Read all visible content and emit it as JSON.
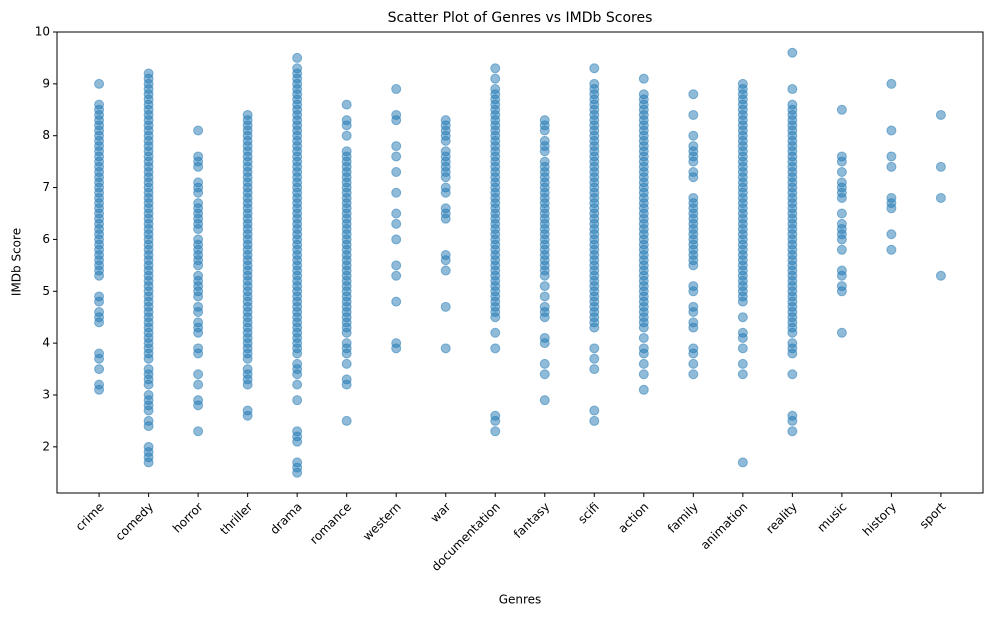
{
  "chart_data": {
    "type": "scatter",
    "title": "Scatter Plot of Genres vs IMDb Scores",
    "x_label": "Genres",
    "y_label": "IMDb Score",
    "color": "#1f77b4",
    "ylim": [
      1.11,
      10
    ],
    "yticks": [
      2,
      3,
      4,
      5,
      6,
      7,
      8,
      9,
      10
    ],
    "categories": [
      "crime",
      "comedy",
      "horror",
      "thriller",
      "drama",
      "romance",
      "western",
      "war",
      "documentation",
      "fantasy",
      "scifi",
      "action",
      "family",
      "animation",
      "reality",
      "music",
      "history",
      "sport"
    ],
    "values": [
      [
        9.0,
        8.6,
        8.5,
        8.4,
        8.3,
        8.2,
        8.1,
        8.0,
        7.9,
        7.8,
        7.7,
        7.6,
        7.5,
        7.4,
        7.3,
        7.2,
        7.1,
        7.0,
        6.9,
        6.8,
        6.7,
        6.6,
        6.5,
        6.4,
        6.3,
        6.2,
        6.1,
        6.0,
        5.9,
        5.8,
        5.7,
        5.6,
        5.5,
        5.4,
        5.3,
        4.9,
        4.8,
        4.6,
        4.5,
        4.4,
        3.8,
        3.7,
        3.5,
        3.2,
        3.1
      ],
      [
        9.2,
        9.1,
        9.0,
        8.9,
        8.8,
        8.7,
        8.6,
        8.5,
        8.4,
        8.3,
        8.2,
        8.1,
        8.0,
        7.9,
        7.8,
        7.7,
        7.6,
        7.5,
        7.4,
        7.3,
        7.2,
        7.1,
        7.0,
        6.9,
        6.8,
        6.7,
        6.6,
        6.5,
        6.4,
        6.3,
        6.2,
        6.1,
        6.0,
        5.9,
        5.8,
        5.7,
        5.6,
        5.5,
        5.4,
        5.3,
        5.2,
        5.1,
        5.0,
        4.9,
        4.8,
        4.7,
        4.6,
        4.5,
        4.4,
        4.3,
        4.2,
        4.1,
        4.0,
        3.9,
        3.8,
        3.7,
        3.5,
        3.4,
        3.3,
        3.2,
        3.0,
        2.9,
        2.8,
        2.7,
        2.5,
        2.4,
        2.0,
        1.9,
        1.8,
        1.7
      ],
      [
        8.1,
        7.6,
        7.5,
        7.4,
        7.1,
        7.0,
        6.9,
        6.7,
        6.6,
        6.5,
        6.4,
        6.3,
        6.2,
        6.0,
        5.9,
        5.8,
        5.7,
        5.6,
        5.5,
        5.3,
        5.2,
        5.1,
        5.0,
        4.9,
        4.7,
        4.6,
        4.4,
        4.3,
        4.2,
        3.9,
        3.8,
        3.4,
        3.2,
        2.9,
        2.8,
        2.3
      ],
      [
        8.4,
        8.3,
        8.2,
        8.1,
        8.0,
        7.9,
        7.8,
        7.7,
        7.6,
        7.5,
        7.4,
        7.3,
        7.2,
        7.1,
        7.0,
        6.9,
        6.8,
        6.7,
        6.6,
        6.5,
        6.4,
        6.3,
        6.2,
        6.1,
        6.0,
        5.9,
        5.8,
        5.7,
        5.6,
        5.5,
        5.4,
        5.3,
        5.2,
        5.1,
        5.0,
        4.9,
        4.8,
        4.7,
        4.6,
        4.5,
        4.4,
        4.3,
        4.2,
        4.1,
        4.0,
        3.9,
        3.8,
        3.7,
        3.5,
        3.4,
        3.3,
        3.2,
        2.7,
        2.6
      ],
      [
        9.5,
        9.3,
        9.2,
        9.1,
        9.0,
        8.9,
        8.8,
        8.7,
        8.6,
        8.5,
        8.4,
        8.3,
        8.2,
        8.1,
        8.0,
        7.9,
        7.8,
        7.7,
        7.6,
        7.5,
        7.4,
        7.3,
        7.2,
        7.1,
        7.0,
        6.9,
        6.8,
        6.7,
        6.6,
        6.5,
        6.4,
        6.3,
        6.2,
        6.1,
        6.0,
        5.9,
        5.8,
        5.7,
        5.6,
        5.5,
        5.4,
        5.3,
        5.2,
        5.1,
        5.0,
        4.9,
        4.8,
        4.7,
        4.6,
        4.5,
        4.4,
        4.3,
        4.2,
        4.1,
        4.0,
        3.9,
        3.8,
        3.6,
        3.5,
        3.4,
        3.2,
        2.9,
        2.3,
        2.2,
        2.1,
        1.7,
        1.6,
        1.5
      ],
      [
        8.6,
        8.3,
        8.2,
        8.0,
        7.7,
        7.6,
        7.5,
        7.4,
        7.3,
        7.2,
        7.1,
        7.0,
        6.9,
        6.8,
        6.7,
        6.6,
        6.5,
        6.4,
        6.3,
        6.2,
        6.1,
        6.0,
        5.9,
        5.8,
        5.7,
        5.6,
        5.5,
        5.4,
        5.3,
        5.2,
        5.1,
        5.0,
        4.9,
        4.8,
        4.7,
        4.6,
        4.5,
        4.4,
        4.3,
        4.2,
        4.0,
        3.9,
        3.8,
        3.6,
        3.3,
        3.2,
        2.5
      ],
      [
        8.9,
        8.4,
        8.3,
        7.8,
        7.6,
        7.3,
        6.9,
        6.5,
        6.3,
        6.0,
        5.5,
        5.3,
        4.8,
        4.0,
        3.9
      ],
      [
        8.3,
        8.2,
        8.1,
        8.0,
        7.9,
        7.7,
        7.6,
        7.5,
        7.4,
        7.3,
        7.2,
        7.0,
        6.9,
        6.6,
        6.5,
        6.4,
        5.7,
        5.6,
        5.4,
        4.7,
        3.9
      ],
      [
        9.3,
        9.1,
        8.9,
        8.8,
        8.7,
        8.6,
        8.5,
        8.4,
        8.3,
        8.2,
        8.1,
        8.0,
        7.9,
        7.8,
        7.7,
        7.6,
        7.5,
        7.4,
        7.3,
        7.2,
        7.1,
        7.0,
        6.9,
        6.8,
        6.7,
        6.6,
        6.5,
        6.4,
        6.3,
        6.2,
        6.1,
        6.0,
        5.9,
        5.8,
        5.7,
        5.6,
        5.5,
        5.4,
        5.3,
        5.2,
        5.1,
        5.0,
        4.9,
        4.8,
        4.7,
        4.6,
        4.5,
        4.2,
        3.9,
        2.6,
        2.5,
        2.3
      ],
      [
        8.3,
        8.2,
        8.1,
        7.9,
        7.8,
        7.7,
        7.5,
        7.4,
        7.3,
        7.2,
        7.1,
        7.0,
        6.9,
        6.8,
        6.7,
        6.6,
        6.5,
        6.4,
        6.3,
        6.2,
        6.1,
        6.0,
        5.9,
        5.8,
        5.7,
        5.6,
        5.5,
        5.4,
        5.3,
        5.1,
        4.9,
        4.7,
        4.6,
        4.5,
        4.1,
        4.0,
        3.6,
        3.4,
        2.9
      ],
      [
        9.3,
        9.0,
        8.9,
        8.8,
        8.7,
        8.6,
        8.5,
        8.4,
        8.3,
        8.2,
        8.1,
        8.0,
        7.9,
        7.8,
        7.7,
        7.6,
        7.5,
        7.4,
        7.3,
        7.2,
        7.1,
        7.0,
        6.9,
        6.8,
        6.7,
        6.6,
        6.5,
        6.4,
        6.3,
        6.2,
        6.1,
        6.0,
        5.9,
        5.8,
        5.7,
        5.6,
        5.5,
        5.4,
        5.3,
        5.2,
        5.1,
        5.0,
        4.9,
        4.8,
        4.7,
        4.6,
        4.5,
        4.4,
        4.3,
        3.9,
        3.7,
        3.5,
        2.7,
        2.5
      ],
      [
        9.1,
        8.8,
        8.7,
        8.6,
        8.5,
        8.4,
        8.3,
        8.2,
        8.1,
        8.0,
        7.9,
        7.8,
        7.7,
        7.6,
        7.5,
        7.4,
        7.3,
        7.2,
        7.1,
        7.0,
        6.9,
        6.8,
        6.7,
        6.6,
        6.5,
        6.4,
        6.3,
        6.2,
        6.1,
        6.0,
        5.9,
        5.8,
        5.7,
        5.6,
        5.5,
        5.4,
        5.3,
        5.2,
        5.1,
        5.0,
        4.9,
        4.8,
        4.7,
        4.6,
        4.5,
        4.4,
        4.3,
        4.1,
        3.9,
        3.8,
        3.6,
        3.4,
        3.1
      ],
      [
        8.8,
        8.4,
        8.0,
        7.8,
        7.7,
        7.6,
        7.5,
        7.3,
        7.2,
        6.8,
        6.7,
        6.6,
        6.5,
        6.4,
        6.3,
        6.2,
        6.1,
        6.0,
        5.9,
        5.8,
        5.7,
        5.6,
        5.5,
        5.1,
        5.0,
        4.7,
        4.6,
        4.4,
        4.3,
        3.9,
        3.8,
        3.6,
        3.4
      ],
      [
        9.0,
        8.9,
        8.8,
        8.7,
        8.6,
        8.5,
        8.4,
        8.3,
        8.2,
        8.1,
        8.0,
        7.9,
        7.8,
        7.7,
        7.6,
        7.5,
        7.4,
        7.3,
        7.2,
        7.1,
        7.0,
        6.9,
        6.8,
        6.7,
        6.6,
        6.5,
        6.4,
        6.3,
        6.2,
        6.1,
        6.0,
        5.9,
        5.8,
        5.7,
        5.6,
        5.5,
        5.4,
        5.3,
        5.2,
        5.1,
        5.0,
        4.9,
        4.8,
        4.5,
        4.2,
        4.1,
        3.9,
        3.6,
        3.4,
        1.7
      ],
      [
        9.6,
        8.9,
        8.6,
        8.5,
        8.4,
        8.3,
        8.2,
        8.1,
        8.0,
        7.9,
        7.8,
        7.7,
        7.6,
        7.5,
        7.4,
        7.3,
        7.2,
        7.1,
        7.0,
        6.9,
        6.8,
        6.7,
        6.6,
        6.5,
        6.4,
        6.3,
        6.2,
        6.1,
        6.0,
        5.9,
        5.8,
        5.7,
        5.6,
        5.5,
        5.4,
        5.3,
        5.2,
        5.1,
        5.0,
        4.9,
        4.8,
        4.7,
        4.6,
        4.5,
        4.4,
        4.3,
        4.2,
        4.0,
        3.9,
        3.8,
        3.4,
        2.6,
        2.5,
        2.3
      ],
      [
        8.5,
        7.6,
        7.5,
        7.3,
        7.1,
        7.0,
        6.9,
        6.8,
        6.5,
        6.3,
        6.2,
        6.1,
        6.0,
        5.8,
        5.4,
        5.3,
        5.1,
        5.0,
        4.2
      ],
      [
        9.0,
        8.1,
        7.6,
        7.4,
        6.8,
        6.7,
        6.6,
        6.1,
        5.8
      ],
      [
        8.4,
        7.4,
        6.8,
        5.3
      ]
    ]
  }
}
